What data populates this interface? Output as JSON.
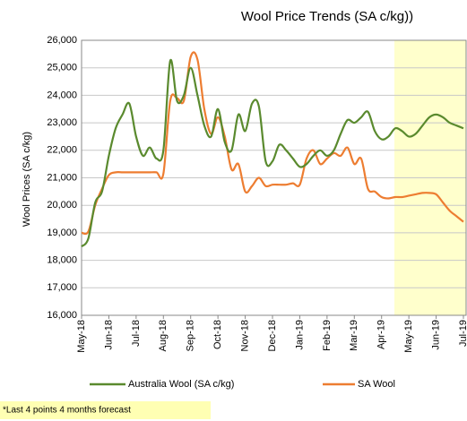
{
  "chart_data": {
    "type": "line",
    "title": "Wool Price Trends (SA c/kg))",
    "y_label": "Wool Prices (SA c/kg)",
    "categories": [
      "May-18",
      null,
      null,
      null,
      "Jun-18",
      null,
      null,
      null,
      "Jul-18",
      null,
      null,
      null,
      "Aug-18",
      null,
      null,
      null,
      "Sep-18",
      null,
      null,
      null,
      "Oct-18",
      null,
      null,
      null,
      "Nov-18",
      null,
      null,
      null,
      "Dec-18",
      null,
      null,
      null,
      "Jan-19",
      null,
      null,
      null,
      "Feb-19",
      null,
      null,
      null,
      "Mar-19",
      null,
      null,
      null,
      "Apr-19",
      null,
      null,
      null,
      "May-19",
      null,
      null,
      null,
      "Jun-19",
      null,
      null,
      null,
      "Jul-19"
    ],
    "series": [
      {
        "name": "Australia Wool (SA c/kg)",
        "color": "#5a8a2e",
        "values": [
          18500,
          18800,
          20100,
          20500,
          21800,
          22800,
          23300,
          23700,
          22500,
          21800,
          22100,
          21700,
          22000,
          25250,
          23800,
          24000,
          25000,
          24000,
          22900,
          22500,
          23500,
          22300,
          22000,
          23300,
          22700,
          23700,
          23600,
          21600,
          21600,
          22200,
          22000,
          21700,
          21400,
          21500,
          21800,
          22000,
          21800,
          22000,
          22600,
          23100,
          23000,
          23200,
          23400,
          22700,
          22400,
          22500,
          22800,
          22700,
          22500,
          22600,
          22900,
          23200,
          23300,
          23200,
          23000,
          22900,
          22800
        ]
      },
      {
        "name": "SA Wool",
        "color": "#ed7d31",
        "values": [
          19000,
          19050,
          20000,
          20600,
          21100,
          21200,
          21200,
          21200,
          21200,
          21200,
          21200,
          21200,
          21150,
          23800,
          23900,
          23800,
          25400,
          25300,
          23500,
          22600,
          23200,
          22500,
          21300,
          21500,
          20500,
          20700,
          21000,
          20700,
          20750,
          20750,
          20750,
          20800,
          20750,
          21700,
          22000,
          21500,
          21700,
          21900,
          21800,
          22100,
          21500,
          21700,
          20600,
          20500,
          20300,
          20250,
          20300,
          20300,
          20350,
          20400,
          20450,
          20450,
          20400,
          20100,
          19800,
          19600,
          19400
        ]
      }
    ],
    "ylim": [
      16000,
      26000
    ],
    "yticks": [
      {
        "value": 16000,
        "label": "16,000"
      },
      {
        "value": 17000,
        "label": "17,000"
      },
      {
        "value": 18000,
        "label": "18,000"
      },
      {
        "value": 19000,
        "label": "19,000"
      },
      {
        "value": 20000,
        "label": "20,000"
      },
      {
        "value": 21000,
        "label": "21,000"
      },
      {
        "value": 22000,
        "label": "22,000"
      },
      {
        "value": 23000,
        "label": "23,000"
      },
      {
        "value": 24000,
        "label": "24,000"
      },
      {
        "value": 25000,
        "label": "25,000"
      },
      {
        "value": 26000,
        "label": "26,000"
      }
    ],
    "grid": true,
    "note": "*Last 4 points 4 months forecast"
  }
}
